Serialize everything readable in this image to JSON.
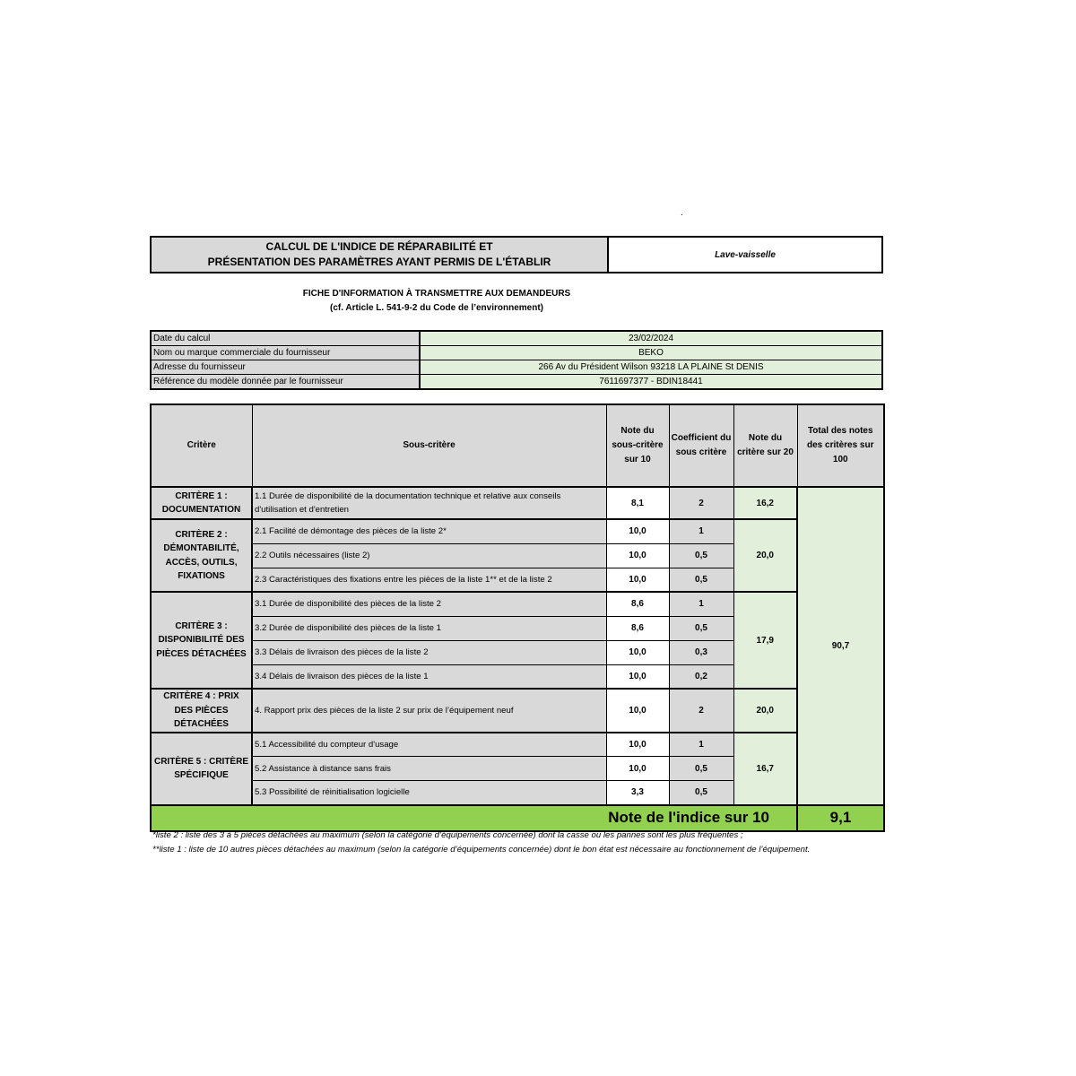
{
  "header": {
    "title_line1": "CALCUL DE L'INDICE DE RÉPARABILITÉ ET",
    "title_line2": "PRÉSENTATION DES PARAMÈTRES AYANT PERMIS DE L'ÉTABLIR",
    "category": "Lave-vaisselle",
    "dot": ".",
    "fiche_line1": "FICHE D'INFORMATION À TRANSMETTRE AUX DEMANDEURS",
    "fiche_line2": "(cf. Article L. 541-9-2 du Code de l’environnement)"
  },
  "info": [
    {
      "label": "Date du calcul",
      "value": "23/02/2024"
    },
    {
      "label": "Nom ou marque commerciale du fournisseur",
      "value": "BEKO"
    },
    {
      "label": "Adresse du fournisseur",
      "value": "266 Av du Président Wilson 93218 LA PLAINE St DENIS"
    },
    {
      "label": "Référence du modèle donnée par le fournisseur",
      "value": "7611697377 - BDIN18441"
    }
  ],
  "table": {
    "headers": [
      "Critère",
      "Sous-critère",
      "Note du sous-critère sur 10",
      "Coefficient du sous critère",
      "Note du critère sur 20",
      "Total des notes des critères sur 100"
    ],
    "total": "90,7",
    "criteria": [
      {
        "name": "CRITÈRE 1 : DOCUMENTATION",
        "score": "16,2",
        "subs": [
          {
            "label": "1.1 Durée de disponibilité de la documentation technique et relative aux conseils d'utilisation et d'entretien",
            "note": "8,1",
            "coef": "2"
          }
        ]
      },
      {
        "name": "CRITÈRE 2 : DÉMONTABILITÉ, ACCÈS, OUTILS, FIXATIONS",
        "score": "20,0",
        "subs": [
          {
            "label": "2.1 Facilité de démontage des pièces de la liste 2*",
            "note": "10,0",
            "coef": "1"
          },
          {
            "label": "2.2 Outils nécessaires (liste 2)",
            "note": "10,0",
            "coef": "0,5"
          },
          {
            "label": "2.3 Caractéristiques des fixations entre les pièces de la liste 1** et de la liste 2",
            "note": "10,0",
            "coef": "0,5"
          }
        ]
      },
      {
        "name": "CRITÈRE 3 : DISPONIBILITÉ DES PIÈCES DÉTACHÉES",
        "score": "17,9",
        "subs": [
          {
            "label": "3.1 Durée de disponibilité des pièces de la liste 2",
            "note": "8,6",
            "coef": "1"
          },
          {
            "label": "3.2 Durée de disponibilité des pièces de la liste 1",
            "note": "8,6",
            "coef": "0,5"
          },
          {
            "label": "3.3 Délais de livraison des pièces de la liste 2",
            "note": "10,0",
            "coef": "0,3"
          },
          {
            "label": "3.4 Délais de livraison des pièces de la liste 1",
            "note": "10,0",
            "coef": "0,2"
          }
        ]
      },
      {
        "name": "CRITÈRE 4 : PRIX DES PIÈCES DÉTACHÉES",
        "score": "20,0",
        "subs": [
          {
            "label": "4. Rapport prix des pièces de la liste 2 sur prix de l’équipement neuf",
            "note": "10,0",
            "coef": "2"
          }
        ]
      },
      {
        "name": "CRITÈRE 5 : CRITÈRE SPÉCIFIQUE",
        "score": "16,7",
        "subs": [
          {
            "label": "5.1 Accessibilité du compteur d'usage",
            "note": "10,0",
            "coef": "1"
          },
          {
            "label": "5.2 Assistance à distance sans frais",
            "note": "10,0",
            "coef": "0,5"
          },
          {
            "label": "5.3 Possibilité de réinitialisation logicielle",
            "note": "3,3",
            "coef": "0,5"
          }
        ]
      }
    ],
    "final_label": "Note de l'indice sur 10",
    "final_value": "9,1"
  },
  "footnotes": [
    "*liste 2 : liste des 3 à 5 pièces détachées au maximum (selon la catégorie d’équipements concernée) dont la casse ou les pannes sont les plus fréquentes ;",
    "**liste 1 : liste de 10 autres pièces détachées au maximum (selon la catégorie d’équipements concernée) dont le bon état est nécessaire au fonctionnement de l’équipement."
  ],
  "colors": {
    "grey": "#d9d9d9",
    "light_green": "#e2efda",
    "green": "#92d050"
  }
}
